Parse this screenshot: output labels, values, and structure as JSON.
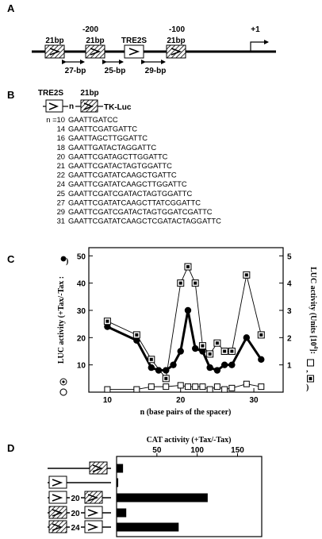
{
  "panels": {
    "a": {
      "label": "A",
      "positions": [
        "-200",
        "-100",
        "+1"
      ],
      "elements": [
        "21bp",
        "21bp",
        "TRE2S",
        "21bp"
      ],
      "spacers": [
        "27-bp",
        "25-bp",
        "29-bp"
      ]
    },
    "b": {
      "label": "B",
      "construct": {
        "tre": "TRE2S",
        "bp": "21bp",
        "n": "n",
        "tkluc": "TK-Luc"
      },
      "rows": [
        {
          "n": "n =10",
          "seq": "GAATTGATCC"
        },
        {
          "n": "14",
          "seq": "GAATTCGATGATTC"
        },
        {
          "n": "16",
          "seq": "GAATTAGCTTGGATTC"
        },
        {
          "n": "18",
          "seq": "GAATTGATACTAGGATTC"
        },
        {
          "n": "20",
          "seq": "GAATTCGATAGCTTGGATTC"
        },
        {
          "n": "21",
          "seq": "GAATTCGATACTAGTGGATTC"
        },
        {
          "n": "22",
          "seq": "GAATTCGATATCAAGCTGATTC"
        },
        {
          "n": "24",
          "seq": "GAATTCGATATCAAGCTTGGATTC"
        },
        {
          "n": "25",
          "seq": "GAATTCGATCGATACTAGTGGATTC"
        },
        {
          "n": "27",
          "seq": "GAATTCGATATCAAGCTTATCGGATTC"
        },
        {
          "n": "29",
          "seq": "GAATTCGATCGATACTAGTGGATCGATTC"
        },
        {
          "n": "31",
          "seq": "GAATTCGATATCAAGCTCGATACTAGGATTC"
        }
      ]
    },
    "c": {
      "label": "C"
    },
    "d": {
      "label": "D",
      "constructs": [
        {
          "spacer": ""
        },
        {
          "spacer": ""
        },
        {
          "spacer": "20"
        },
        {
          "spacer": "20"
        },
        {
          "spacer": "24"
        }
      ]
    }
  },
  "chart_data": [
    {
      "type": "line",
      "xlabel": "n (base pairs of the spacer)",
      "ylabel_left": "LUC activity  (+Tax/-Tax :",
      "ylabel_right": "LUC activity (Units  [10",
      "ylabel_right_sup": "4",
      "ylabel_right_tail": "]:",
      "xlim": [
        4,
        34
      ],
      "xticks": [
        10,
        20,
        30
      ],
      "ylim_left": [
        0,
        53
      ],
      "yticks_left": [
        10,
        20,
        30,
        40,
        50
      ],
      "ylim_right": [
        0,
        5.3
      ],
      "yticks_right": [
        1,
        2,
        3,
        4,
        5
      ],
      "series": [
        {
          "marker": "filled-circle",
          "axis": "left",
          "x": [
            4,
            10,
            14,
            16,
            17,
            18,
            19,
            20,
            21,
            22,
            23,
            24,
            25,
            26,
            27,
            29,
            31
          ],
          "y": [
            0,
            24,
            19,
            9,
            8,
            8,
            10,
            15,
            30,
            16,
            15,
            9,
            8,
            10,
            10,
            20,
            12
          ]
        },
        {
          "marker": "dotted-square",
          "axis": "right",
          "x": [
            10,
            14,
            16,
            18,
            20,
            21,
            22,
            23,
            24,
            25,
            26,
            27,
            29,
            31
          ],
          "y": [
            2.6,
            2.1,
            1.2,
            0.5,
            4.0,
            4.6,
            4.0,
            1.7,
            1.4,
            1.8,
            1.5,
            1.5,
            4.3,
            2.1
          ]
        },
        {
          "marker": "open-square",
          "axis": "right",
          "x": [
            4,
            10,
            14,
            16,
            18,
            20,
            21,
            22,
            23,
            24,
            25,
            26,
            27,
            29,
            31
          ],
          "y": [
            0.05,
            0.1,
            0.1,
            0.2,
            0.2,
            0.25,
            0.2,
            0.2,
            0.2,
            0.1,
            0.2,
            0.1,
            0.15,
            0.3,
            0.2
          ]
        }
      ]
    },
    {
      "type": "bar",
      "title": "CAT activity (+Tax/-Tax)",
      "xticks": [
        50,
        100,
        150
      ],
      "xlim": [
        0,
        180
      ],
      "values": [
        8,
        2,
        113,
        12,
        77
      ]
    }
  ]
}
